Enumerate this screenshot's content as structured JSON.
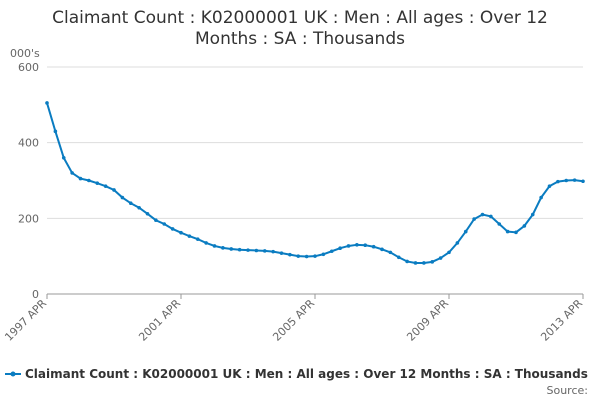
{
  "chart_data": {
    "type": "line",
    "title": [
      "Claimant Count : K02000001 UK : Men : All ages : Over 12",
      "Months : SA : Thousands"
    ],
    "y_unit": "000's",
    "source": "Source:",
    "categories": [
      "1997 APR",
      null,
      null,
      null,
      null,
      null,
      null,
      null,
      null,
      null,
      null,
      null,
      null,
      null,
      null,
      null,
      "2001 APR",
      null,
      null,
      null,
      null,
      null,
      null,
      null,
      null,
      null,
      null,
      null,
      null,
      null,
      null,
      null,
      "2005 APR",
      null,
      null,
      null,
      null,
      null,
      null,
      null,
      null,
      null,
      null,
      null,
      null,
      null,
      null,
      null,
      "2009 APR",
      null,
      null,
      null,
      null,
      null,
      null,
      null,
      null,
      null,
      null,
      null,
      null,
      null,
      null,
      null,
      "2013 APR"
    ],
    "series": [
      {
        "name": "Claimant Count : K02000001 UK : Men : All ages : Over 12 Months : SA : Thousands",
        "color": "#0a7cc1",
        "values": [
          505,
          430,
          360,
          320,
          305,
          300,
          293,
          285,
          275,
          255,
          240,
          228,
          212,
          195,
          185,
          172,
          162,
          153,
          145,
          135,
          127,
          122,
          119,
          117,
          116,
          115,
          114,
          112,
          108,
          104,
          100,
          99,
          100,
          105,
          113,
          121,
          127,
          130,
          129,
          125,
          118,
          110,
          97,
          86,
          82,
          82,
          85,
          95,
          110,
          135,
          165,
          198,
          210,
          205,
          185,
          165,
          163,
          180,
          210,
          255,
          285,
          297,
          300,
          301,
          298
        ]
      }
    ],
    "ylim": [
      0,
      600
    ],
    "yticks": [
      0,
      200,
      400,
      600
    ],
    "grid": true
  }
}
